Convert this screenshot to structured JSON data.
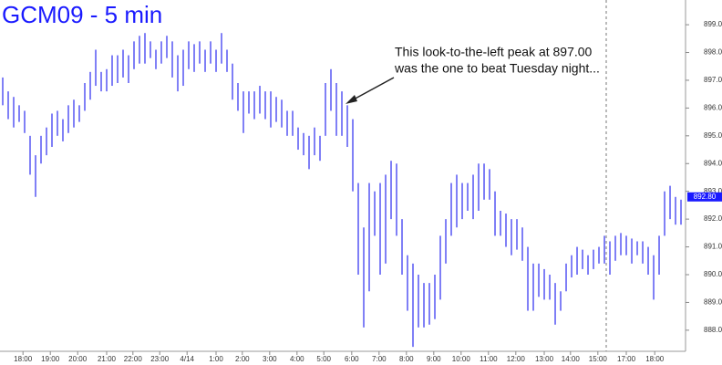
{
  "chart_data": {
    "type": "ohlc",
    "title": "GCM09 - 5 min",
    "annotation": [
      "This look-to-the-left peak at 897.00",
      "was the one to beat Tuesday night..."
    ],
    "color": "#2b2bf0",
    "high": [
      897.1,
      896.6,
      896.4,
      896.1,
      895.9,
      895.0,
      894.3,
      895.0,
      895.3,
      895.8,
      895.9,
      895.6,
      896.1,
      896.3,
      896.1,
      896.9,
      897.3,
      898.1,
      897.3,
      897.4,
      897.9,
      897.9,
      898.1,
      897.9,
      898.4,
      898.6,
      898.7,
      898.4,
      898.1,
      898.4,
      898.6,
      898.4,
      897.9,
      898.1,
      898.4,
      898.3,
      898.4,
      898.1,
      898.4,
      898.1,
      898.7,
      898.1,
      897.6,
      896.9,
      896.6,
      896.6,
      896.6,
      896.8,
      896.6,
      896.6,
      896.4,
      896.3,
      895.9,
      895.9,
      895.3,
      895.1,
      895.0,
      895.3,
      895.0,
      896.9,
      897.4,
      896.9,
      896.6,
      896.1,
      895.6,
      893.3,
      891.7,
      893.3,
      893.0,
      893.3,
      893.6,
      894.1,
      894.0,
      892.0,
      890.7,
      890.4,
      890.0,
      889.7,
      889.7,
      890.0,
      891.4,
      892.0,
      893.3,
      893.6,
      893.3,
      893.3,
      893.6,
      894.0,
      894.0,
      893.8,
      893.0,
      892.3,
      892.2,
      892.0,
      892.0,
      891.7,
      891.0,
      890.4,
      890.4,
      890.2,
      890.0,
      889.7,
      889.4,
      890.4,
      890.7,
      891.0,
      890.9,
      890.7,
      890.9,
      891.0,
      891.4,
      891.2,
      891.4,
      891.5,
      891.4,
      891.3,
      891.2,
      891.2,
      891.0,
      890.7,
      891.4,
      893.0,
      893.2,
      892.8,
      892.7
    ],
    "low": [
      896.1,
      895.6,
      895.3,
      895.5,
      895.1,
      893.6,
      892.8,
      894.0,
      894.3,
      894.6,
      895.0,
      894.8,
      895.1,
      895.3,
      895.5,
      895.9,
      896.3,
      896.8,
      896.6,
      896.6,
      896.8,
      896.9,
      897.1,
      896.9,
      897.4,
      897.6,
      897.6,
      897.8,
      897.4,
      897.6,
      897.8,
      897.1,
      896.6,
      896.8,
      897.4,
      897.3,
      897.6,
      897.3,
      897.6,
      897.3,
      897.6,
      897.3,
      896.3,
      895.9,
      895.1,
      895.8,
      895.6,
      895.8,
      895.6,
      895.3,
      895.5,
      895.3,
      895.0,
      895.0,
      894.5,
      894.3,
      893.8,
      894.3,
      894.1,
      895.0,
      895.9,
      895.0,
      895.0,
      894.6,
      893.0,
      890.0,
      888.1,
      889.4,
      891.4,
      890.0,
      890.4,
      892.0,
      891.4,
      890.0,
      888.7,
      887.4,
      888.1,
      888.1,
      888.2,
      888.4,
      889.1,
      890.4,
      891.4,
      891.7,
      892.0,
      892.3,
      892.0,
      892.3,
      892.7,
      892.7,
      891.4,
      891.4,
      891.0,
      890.7,
      890.9,
      890.5,
      888.7,
      888.7,
      889.2,
      889.1,
      889.1,
      888.2,
      888.7,
      889.4,
      889.9,
      890.0,
      890.2,
      890.0,
      890.2,
      890.4,
      890.4,
      890.0,
      890.5,
      890.7,
      890.7,
      890.4,
      890.7,
      890.4,
      890.0,
      889.1,
      890.0,
      891.4,
      892.0,
      891.8,
      891.8
    ],
    "last_price": {
      "value": 892.8,
      "label": "892.80"
    },
    "xlim": [
      -0.5,
      124.83
    ],
    "xticks": [
      {
        "value": 3.7,
        "label": "18:00"
      },
      {
        "value": 8.7,
        "label": "19:00"
      },
      {
        "value": 13.7,
        "label": "20:00"
      },
      {
        "value": 19,
        "label": "21:00"
      },
      {
        "value": 23.8,
        "label": "22:00"
      },
      {
        "value": 28.7,
        "label": "23:00"
      },
      {
        "value": 33.7,
        "label": "4/14"
      },
      {
        "value": 39,
        "label": "1:00"
      },
      {
        "value": 43.8,
        "label": "2:00"
      },
      {
        "value": 48.8,
        "label": "3:00"
      },
      {
        "value": 53.8,
        "label": "4:00"
      },
      {
        "value": 58.7,
        "label": "5:00"
      },
      {
        "value": 63.8,
        "label": "6:00"
      },
      {
        "value": 68.8,
        "label": "7:00"
      },
      {
        "value": 73.8,
        "label": "8:00"
      },
      {
        "value": 78.8,
        "label": "9:00"
      },
      {
        "value": 83.8,
        "label": "10:00"
      },
      {
        "value": 88.8,
        "label": "11:00"
      },
      {
        "value": 93.8,
        "label": "12:00"
      },
      {
        "value": 99,
        "label": "13:00"
      },
      {
        "value": 103.8,
        "label": "14:00"
      },
      {
        "value": 108.8,
        "label": "15:00"
      },
      {
        "value": 114,
        "label": "17:00"
      },
      {
        "value": 119.2,
        "label": "18:00"
      }
    ],
    "ylim": [
      887.24,
      899.89
    ],
    "yticks": [
      {
        "value": 888,
        "label": "888.00"
      },
      {
        "value": 889,
        "label": "889.00"
      },
      {
        "value": 890,
        "label": "890.00"
      },
      {
        "value": 891,
        "label": "891.00"
      },
      {
        "value": 892,
        "label": "892.00"
      },
      {
        "value": 893,
        "label": "893.00"
      },
      {
        "value": 894,
        "label": "894.00"
      },
      {
        "value": 895,
        "label": "895.00"
      },
      {
        "value": 896,
        "label": "896.00"
      },
      {
        "value": 897,
        "label": "897.00"
      },
      {
        "value": 898,
        "label": "898.00"
      },
      {
        "value": 899,
        "label": "899.00"
      }
    ]
  }
}
